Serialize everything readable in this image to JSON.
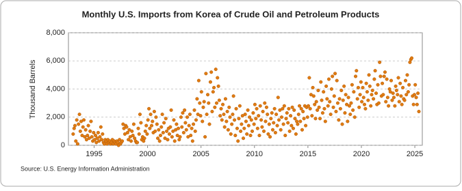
{
  "chart_data": {
    "type": "scatter",
    "title": "Monthly U.S. Imports from Korea of Crude Oil and Petroleum Products",
    "ylabel": "Thousand Barrels",
    "source": "Source: U.S. Energy Information Administration",
    "xlim": [
      1992.6,
      2025.7
    ],
    "ylim": [
      0,
      8000
    ],
    "xticks": [
      1995,
      2000,
      2005,
      2010,
      2015,
      2020,
      2025
    ],
    "yticks": [
      0,
      {
        "value": 2000,
        "label": "2,000"
      },
      {
        "value": 4000,
        "label": "4,000"
      },
      {
        "value": 6000,
        "label": "6,000"
      },
      {
        "value": 8000,
        "label": "8,000"
      }
    ],
    "grid": true,
    "series": [
      {
        "color": "#e07b12",
        "x": [
          1993.04,
          1993.13,
          1993.21,
          1993.29,
          1993.38,
          1993.46,
          1993.54,
          1993.63,
          1993.71,
          1993.79,
          1993.88,
          1993.96,
          1994.04,
          1994.13,
          1994.21,
          1994.29,
          1994.38,
          1994.46,
          1994.54,
          1994.63,
          1994.71,
          1994.79,
          1994.88,
          1994.96,
          1995.04,
          1995.13,
          1995.21,
          1995.29,
          1995.38,
          1995.46,
          1995.54,
          1995.63,
          1995.71,
          1995.79,
          1995.88,
          1995.96,
          1996.04,
          1996.13,
          1996.21,
          1996.29,
          1996.38,
          1996.46,
          1996.54,
          1996.63,
          1996.71,
          1996.79,
          1996.88,
          1996.96,
          1997.04,
          1997.13,
          1997.21,
          1997.29,
          1997.38,
          1997.46,
          1997.54,
          1997.63,
          1997.71,
          1997.79,
          1997.88,
          1997.96,
          1998.04,
          1998.13,
          1998.21,
          1998.29,
          1998.38,
          1998.46,
          1998.54,
          1998.63,
          1998.71,
          1998.79,
          1998.88,
          1998.96,
          1999.04,
          1999.13,
          1999.21,
          1999.29,
          1999.38,
          1999.46,
          1999.54,
          1999.63,
          1999.71,
          1999.79,
          1999.88,
          1999.96,
          2000.04,
          2000.13,
          2000.21,
          2000.29,
          2000.38,
          2000.46,
          2000.54,
          2000.63,
          2000.71,
          2000.79,
          2000.88,
          2000.96,
          2001.04,
          2001.13,
          2001.21,
          2001.29,
          2001.38,
          2001.46,
          2001.54,
          2001.63,
          2001.71,
          2001.79,
          2001.88,
          2001.96,
          2002.04,
          2002.13,
          2002.21,
          2002.29,
          2002.38,
          2002.46,
          2002.54,
          2002.63,
          2002.71,
          2002.79,
          2002.88,
          2002.96,
          2003.04,
          2003.13,
          2003.21,
          2003.29,
          2003.38,
          2003.46,
          2003.54,
          2003.63,
          2003.71,
          2003.79,
          2003.88,
          2003.96,
          2004.04,
          2004.13,
          2004.21,
          2004.29,
          2004.38,
          2004.46,
          2004.54,
          2004.63,
          2004.71,
          2004.79,
          2004.88,
          2004.96,
          2005.04,
          2005.13,
          2005.21,
          2005.29,
          2005.38,
          2005.46,
          2005.54,
          2005.63,
          2005.71,
          2005.79,
          2005.88,
          2005.96,
          2006.04,
          2006.13,
          2006.21,
          2006.29,
          2006.38,
          2006.46,
          2006.54,
          2006.63,
          2006.71,
          2006.79,
          2006.88,
          2006.96,
          2007.04,
          2007.13,
          2007.21,
          2007.29,
          2007.38,
          2007.46,
          2007.54,
          2007.63,
          2007.71,
          2007.79,
          2007.88,
          2007.96,
          2008.04,
          2008.13,
          2008.21,
          2008.29,
          2008.38,
          2008.46,
          2008.54,
          2008.63,
          2008.71,
          2008.79,
          2008.88,
          2008.96,
          2009.04,
          2009.13,
          2009.21,
          2009.29,
          2009.38,
          2009.46,
          2009.54,
          2009.63,
          2009.71,
          2009.79,
          2009.88,
          2009.96,
          2010.04,
          2010.13,
          2010.21,
          2010.29,
          2010.38,
          2010.46,
          2010.54,
          2010.63,
          2010.71,
          2010.79,
          2010.88,
          2010.96,
          2011.04,
          2011.13,
          2011.21,
          2011.29,
          2011.38,
          2011.46,
          2011.54,
          2011.63,
          2011.71,
          2011.79,
          2011.88,
          2011.96,
          2012.04,
          2012.13,
          2012.21,
          2012.29,
          2012.38,
          2012.46,
          2012.54,
          2012.63,
          2012.71,
          2012.79,
          2012.88,
          2012.96,
          2013.04,
          2013.13,
          2013.21,
          2013.29,
          2013.38,
          2013.46,
          2013.54,
          2013.63,
          2013.71,
          2013.79,
          2013.88,
          2013.96,
          2014.04,
          2014.13,
          2014.21,
          2014.29,
          2014.38,
          2014.46,
          2014.54,
          2014.63,
          2014.71,
          2014.79,
          2014.88,
          2014.96,
          2015.04,
          2015.13,
          2015.21,
          2015.29,
          2015.38,
          2015.46,
          2015.54,
          2015.63,
          2015.71,
          2015.79,
          2015.88,
          2015.96,
          2016.04,
          2016.13,
          2016.21,
          2016.29,
          2016.38,
          2016.46,
          2016.54,
          2016.63,
          2016.71,
          2016.79,
          2016.88,
          2016.96,
          2017.04,
          2017.13,
          2017.21,
          2017.29,
          2017.38,
          2017.46,
          2017.54,
          2017.63,
          2017.71,
          2017.79,
          2017.88,
          2017.96,
          2018.04,
          2018.13,
          2018.21,
          2018.29,
          2018.38,
          2018.46,
          2018.54,
          2018.63,
          2018.71,
          2018.79,
          2018.88,
          2018.96,
          2019.04,
          2019.13,
          2019.21,
          2019.29,
          2019.38,
          2019.46,
          2019.54,
          2019.63,
          2019.71,
          2019.79,
          2019.88,
          2019.96,
          2020.04,
          2020.13,
          2020.21,
          2020.29,
          2020.38,
          2020.46,
          2020.54,
          2020.63,
          2020.71,
          2020.79,
          2020.88,
          2020.96,
          2021.04,
          2021.13,
          2021.21,
          2021.29,
          2021.38,
          2021.46,
          2021.54,
          2021.63,
          2021.71,
          2021.79,
          2021.88,
          2021.96,
          2022.04,
          2022.13,
          2022.21,
          2022.29,
          2022.38,
          2022.46,
          2022.54,
          2022.63,
          2022.71,
          2022.79,
          2022.88,
          2022.96,
          2023.04,
          2023.13,
          2023.21,
          2023.29,
          2023.38,
          2023.46,
          2023.54,
          2023.63,
          2023.71,
          2023.79,
          2023.88,
          2023.96,
          2024.04,
          2024.13,
          2024.21,
          2024.29,
          2024.38,
          2024.46,
          2024.54,
          2024.63,
          2024.71,
          2024.79,
          2024.88,
          2024.96,
          2025.04,
          2025.13,
          2025.21,
          2025.29,
          2025.38
        ],
        "values": [
          800,
          1200,
          1400,
          300,
          1800,
          100,
          1500,
          2200,
          1000,
          1700,
          700,
          1300,
          1800,
          600,
          1100,
          400,
          700,
          1400,
          500,
          1000,
          1700,
          600,
          300,
          900,
          400,
          700,
          200,
          500,
          900,
          300,
          600,
          1300,
          400,
          800,
          200,
          100,
          400,
          300,
          100,
          400,
          200,
          300,
          100,
          200,
          400,
          100,
          300,
          200,
          100,
          300,
          200,
          0,
          400,
          100,
          200,
          300,
          1500,
          1200,
          800,
          1400,
          1300,
          900,
          400,
          1100,
          600,
          300,
          1000,
          700,
          1500,
          500,
          300,
          200,
          200,
          1200,
          800,
          2200,
          1600,
          400,
          600,
          300,
          500,
          1000,
          1400,
          800,
          1800,
          2600,
          1200,
          2200,
          1400,
          1700,
          900,
          2400,
          1000,
          2000,
          1500,
          500,
          1100,
          300,
          700,
          1300,
          2200,
          900,
          1600,
          500,
          1900,
          1000,
          400,
          1200,
          800,
          1300,
          2500,
          600,
          1000,
          1800,
          300,
          1100,
          1500,
          700,
          1200,
          400,
          600,
          2000,
          1300,
          2300,
          900,
          2500,
          1600,
          1100,
          2000,
          600,
          1400,
          2200,
          700,
          1200,
          300,
          1500,
          2500,
          1000,
          1800,
          3300,
          2200,
          4600,
          3000,
          2100,
          3800,
          1700,
          2700,
          3100,
          600,
          5100,
          2200,
          3600,
          3000,
          1500,
          4500,
          5200,
          2400,
          3800,
          4100,
          2700,
          5400,
          3000,
          4800,
          4200,
          3200,
          2100,
          2600,
          1800,
          2900,
          2200,
          1300,
          3300,
          1700,
          2400,
          1100,
          2700,
          2000,
          800,
          1500,
          2200,
          3500,
          1800,
          700,
          2600,
          1200,
          300,
          1900,
          2800,
          1000,
          1500,
          2100,
          500,
          1200,
          2200,
          1700,
          800,
          2500,
          1400,
          2000,
          700,
          1800,
          1000,
          2300,
          1500,
          2900,
          1900,
          2600,
          1200,
          2100,
          700,
          2800,
          1800,
          1300,
          2400,
          1000,
          3000,
          1700,
          2700,
          2200,
          800,
          1500,
          600,
          1900,
          2300,
          1100,
          1600,
          2600,
          900,
          2200,
          1400,
          3400,
          1800,
          2500,
          1100,
          2000,
          2600,
          1500,
          2800,
          700,
          1900,
          2300,
          1600,
          2600,
          1000,
          2100,
          1400,
          2700,
          1200,
          2500,
          1900,
          800,
          1700,
          1500,
          2200,
          2800,
          1700,
          2600,
          1100,
          2400,
          1900,
          2800,
          1400,
          2700,
          2000,
          2800,
          4800,
          2600,
          3600,
          2100,
          4100,
          3500,
          2900,
          1900,
          3100,
          2500,
          3900,
          2700,
          1900,
          4500,
          3200,
          2300,
          3800,
          2600,
          1700,
          4200,
          3300,
          2800,
          4700,
          3100,
          2200,
          4000,
          4900,
          2700,
          3500,
          5100,
          2400,
          4600,
          3000,
          1800,
          3300,
          2600,
          3900,
          1500,
          3200,
          4200,
          2300,
          3600,
          2900,
          1700,
          3400,
          2800,
          2200,
          3000,
          4300,
          2500,
          3800,
          2000,
          4900,
          5300,
          3300,
          4100,
          2700,
          3600,
          4500,
          3100,
          4100,
          3400,
          2900,
          2600,
          4400,
          3800,
          3200,
          5000,
          4200,
          2800,
          3600,
          3900,
          3300,
          4700,
          5300,
          3700,
          2900,
          4300,
          3000,
          5900,
          4900,
          3500,
          4400,
          3600,
          4900,
          5200,
          3100,
          4700,
          3400,
          2800,
          4000,
          3800,
          4600,
          3200,
          3700,
          3400,
          2800,
          4200,
          3900,
          3600,
          4800,
          3100,
          4400,
          3500,
          2900,
          4100,
          3300,
          3200,
          4600,
          3600,
          5000,
          3800,
          4300,
          5900,
          6100,
          6200,
          3500,
          2900,
          3600,
          4300,
          3400,
          2900,
          3700,
          2400
        ]
      }
    ]
  }
}
